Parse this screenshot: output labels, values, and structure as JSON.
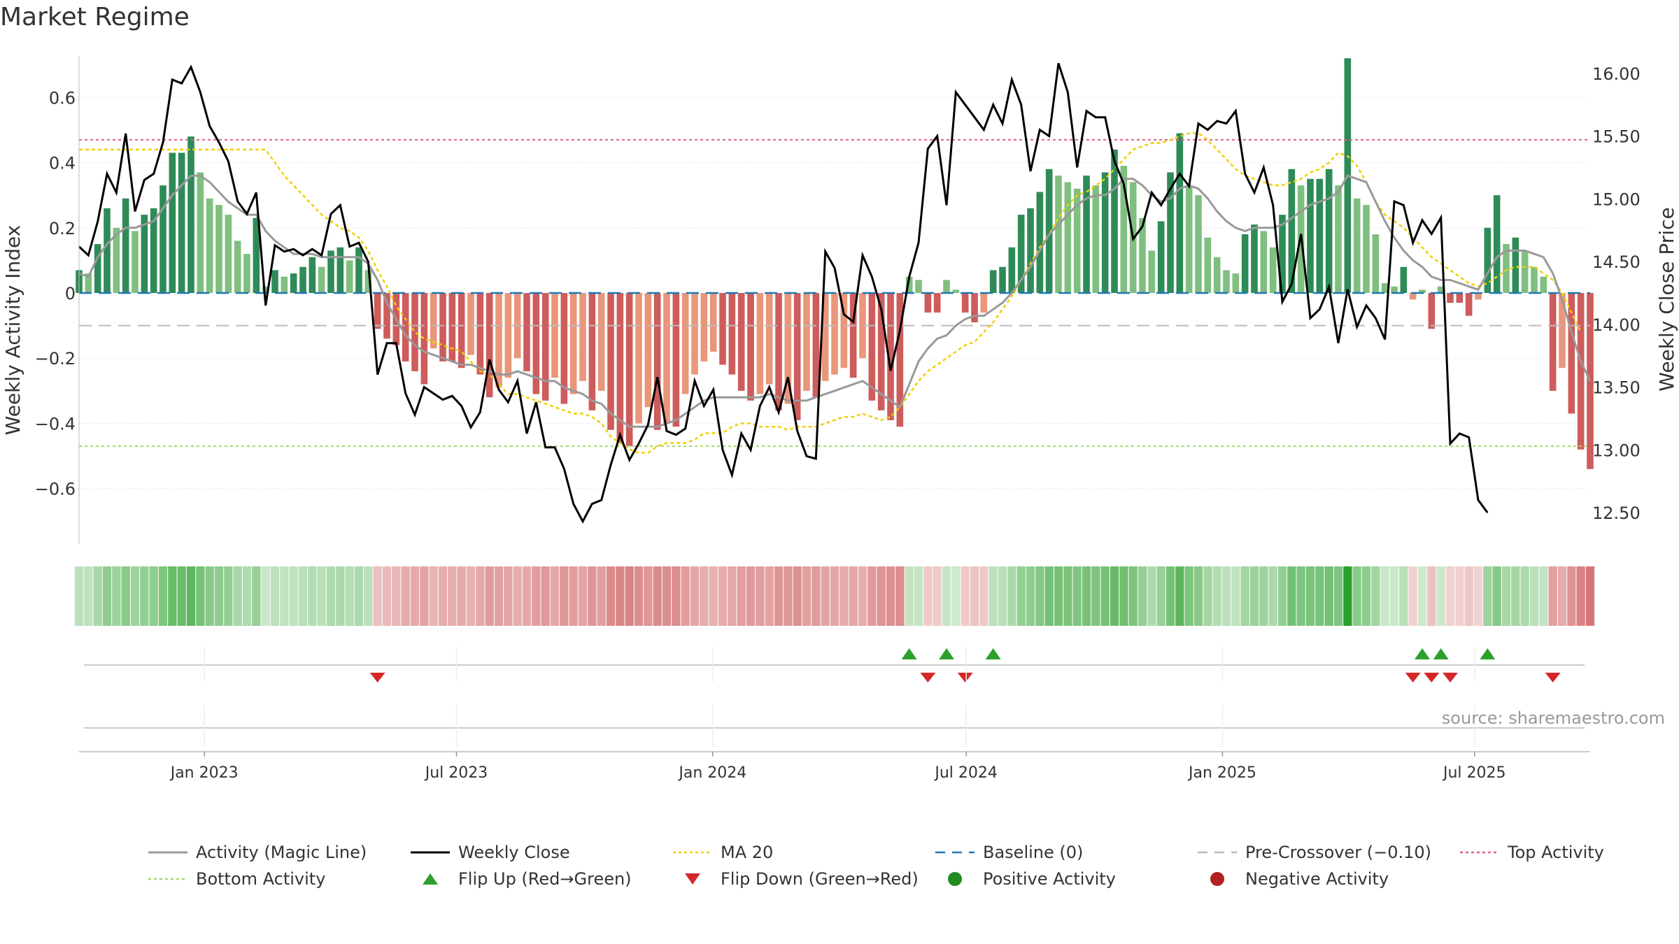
{
  "title": "Market Regime",
  "source": "source: sharemaestro.com",
  "colors": {
    "bar_green_dark": "#2e8b57",
    "bar_green_light": "#7fbf7f",
    "bar_red_dark": "#cd5c5c",
    "bar_red_light": "#e9967a",
    "magic_line": "#999999",
    "weekly_close": "#000000",
    "ma20": "#f0d000",
    "baseline": "#1f77b4",
    "pre_crossover": "#bbbbbb",
    "top_activity": "#e06080",
    "bottom_activity": "#a6d96a",
    "flip_up": "#2ca02c",
    "flip_down": "#d62728",
    "positive": "#228b22",
    "negative": "#b22222"
  },
  "legend": [
    {
      "label": "Activity (Magic Line)",
      "symbol": "line",
      "color": "#999999"
    },
    {
      "label": "Weekly Close",
      "symbol": "line",
      "color": "#000000"
    },
    {
      "label": "MA 20",
      "symbol": "dotted",
      "color": "#f0d000"
    },
    {
      "label": "Baseline (0)",
      "symbol": "dashed",
      "color": "#1f77b4"
    },
    {
      "label": "Pre-Crossover (−0.10)",
      "symbol": "dashed",
      "color": "#bbbbbb"
    },
    {
      "label": "Top Activity",
      "symbol": "dotted",
      "color": "#e06080"
    },
    {
      "label": "Bottom Activity",
      "symbol": "dotted",
      "color": "#a6d96a"
    },
    {
      "label": "Flip Up (Red→Green)",
      "symbol": "triangle-up",
      "color": "#2ca02c"
    },
    {
      "label": "Flip Down (Green→Red)",
      "symbol": "triangle-down",
      "color": "#d62728"
    },
    {
      "label": "Positive Activity",
      "symbol": "circle",
      "color": "#228b22"
    },
    {
      "label": "Negative Activity",
      "symbol": "circle",
      "color": "#b22222"
    }
  ],
  "chart_data": {
    "type": "bar",
    "title": "Market Regime",
    "ylabel": "Weekly Activity Index",
    "y2label": "Weekly Close Price",
    "ylim": [
      -0.77,
      0.77
    ],
    "y2lim": [
      12.25,
      16.25
    ],
    "yticks": [
      0.6,
      0.4,
      0.2,
      0,
      -0.2,
      -0.4,
      -0.6
    ],
    "yticklabels": [
      "0.6",
      "0.4",
      "0.2",
      "0",
      "−0.2",
      "−0.4",
      "−0.6"
    ],
    "y2ticks": [
      16.0,
      15.5,
      15.0,
      14.5,
      14.0,
      13.5,
      13.0,
      12.5
    ],
    "y2ticklabels": [
      "16.00",
      "15.50",
      "15.00",
      "14.50",
      "14.00",
      "13.50",
      "13.00",
      "12.50"
    ],
    "x_start": "2022-10-03",
    "x_end": "2025-09-22",
    "xticks": [
      {
        "date": "2023-01-01",
        "label": "Jan 2023"
      },
      {
        "date": "2023-07-01",
        "label": "Jul 2023"
      },
      {
        "date": "2024-01-01",
        "label": "Jan 2024"
      },
      {
        "date": "2024-07-01",
        "label": "Jul 2024"
      },
      {
        "date": "2025-01-01",
        "label": "Jan 2025"
      },
      {
        "date": "2025-07-01",
        "label": "Jul 2025"
      }
    ],
    "reference_lines": {
      "baseline": 0,
      "pre_crossover": -0.1,
      "top_activity": 0.47,
      "bottom_activity": -0.47
    },
    "activity": [
      0.07,
      0.06,
      0.15,
      0.26,
      0.2,
      0.29,
      0.19,
      0.24,
      0.26,
      0.33,
      0.43,
      0.43,
      0.48,
      0.37,
      0.29,
      0.27,
      0.24,
      0.16,
      0.12,
      0.23,
      0.02,
      0.07,
      0.05,
      0.06,
      0.08,
      0.11,
      0.08,
      0.13,
      0.14,
      0.1,
      0.14,
      0.07,
      -0.11,
      -0.14,
      -0.16,
      -0.21,
      -0.24,
      -0.28,
      -0.17,
      -0.21,
      -0.21,
      -0.23,
      -0.19,
      -0.25,
      -0.32,
      -0.29,
      -0.26,
      -0.2,
      -0.24,
      -0.31,
      -0.33,
      -0.26,
      -0.34,
      -0.31,
      -0.27,
      -0.36,
      -0.3,
      -0.42,
      -0.46,
      -0.47,
      -0.4,
      -0.35,
      -0.42,
      -0.4,
      -0.41,
      -0.31,
      -0.25,
      -0.21,
      -0.18,
      -0.22,
      -0.25,
      -0.3,
      -0.33,
      -0.31,
      -0.28,
      -0.36,
      -0.34,
      -0.39,
      -0.3,
      -0.32,
      -0.27,
      -0.25,
      -0.23,
      -0.26,
      -0.2,
      -0.33,
      -0.36,
      -0.39,
      -0.41,
      0.05,
      0.04,
      -0.06,
      -0.06,
      0.04,
      0.01,
      -0.06,
      -0.09,
      -0.06,
      0.07,
      0.08,
      0.14,
      0.24,
      0.26,
      0.31,
      0.38,
      0.36,
      0.34,
      0.32,
      0.36,
      0.33,
      0.37,
      0.44,
      0.39,
      0.34,
      0.23,
      0.13,
      0.22,
      0.37,
      0.49,
      0.33,
      0.3,
      0.17,
      0.11,
      0.07,
      0.06,
      0.18,
      0.21,
      0.19,
      0.14,
      0.24,
      0.38,
      0.33,
      0.35,
      0.35,
      0.38,
      0.33,
      0.72,
      0.29,
      0.27,
      0.18,
      0.03,
      0.02,
      0.08,
      -0.02,
      0.01,
      -0.11,
      0.02,
      -0.03,
      -0.03,
      -0.07,
      -0.02,
      0.2,
      0.3,
      0.15,
      0.17,
      0.13,
      0.08,
      0.05,
      -0.3,
      -0.23,
      -0.37,
      -0.48,
      -0.54
    ],
    "magic_line": [
      0.06,
      0.05,
      0.11,
      0.15,
      0.18,
      0.2,
      0.2,
      0.21,
      0.22,
      0.26,
      0.3,
      0.33,
      0.36,
      0.36,
      0.34,
      0.31,
      0.28,
      0.26,
      0.24,
      0.24,
      0.19,
      0.16,
      0.14,
      0.12,
      0.12,
      0.12,
      0.11,
      0.11,
      0.11,
      0.11,
      0.11,
      0.09,
      0.04,
      -0.03,
      -0.08,
      -0.13,
      -0.16,
      -0.18,
      -0.19,
      -0.2,
      -0.21,
      -0.22,
      -0.22,
      -0.23,
      -0.24,
      -0.25,
      -0.25,
      -0.24,
      -0.25,
      -0.26,
      -0.27,
      -0.27,
      -0.29,
      -0.3,
      -0.31,
      -0.33,
      -0.34,
      -0.37,
      -0.39,
      -0.41,
      -0.41,
      -0.41,
      -0.41,
      -0.4,
      -0.39,
      -0.37,
      -0.35,
      -0.33,
      -0.32,
      -0.32,
      -0.32,
      -0.32,
      -0.32,
      -0.32,
      -0.31,
      -0.32,
      -0.33,
      -0.33,
      -0.33,
      -0.32,
      -0.31,
      -0.3,
      -0.29,
      -0.28,
      -0.27,
      -0.29,
      -0.31,
      -0.33,
      -0.35,
      -0.28,
      -0.21,
      -0.17,
      -0.14,
      -0.13,
      -0.1,
      -0.08,
      -0.07,
      -0.07,
      -0.05,
      -0.03,
      0.0,
      0.04,
      0.08,
      0.13,
      0.18,
      0.21,
      0.24,
      0.27,
      0.29,
      0.3,
      0.3,
      0.32,
      0.35,
      0.35,
      0.33,
      0.3,
      0.28,
      0.29,
      0.32,
      0.33,
      0.32,
      0.29,
      0.25,
      0.22,
      0.2,
      0.19,
      0.2,
      0.2,
      0.2,
      0.21,
      0.23,
      0.25,
      0.27,
      0.28,
      0.29,
      0.31,
      0.36,
      0.35,
      0.34,
      0.28,
      0.22,
      0.17,
      0.13,
      0.1,
      0.08,
      0.05,
      0.04,
      0.04,
      0.03,
      0.02,
      0.01,
      0.06,
      0.11,
      0.13,
      0.13,
      0.13,
      0.12,
      0.11,
      0.06,
      -0.02,
      -0.12,
      -0.21,
      -0.27
    ],
    "ma20": [
      0.44,
      0.44,
      0.44,
      0.44,
      0.44,
      0.44,
      0.44,
      0.44,
      0.44,
      0.44,
      0.44,
      0.44,
      0.44,
      0.44,
      0.44,
      0.44,
      0.44,
      0.44,
      0.44,
      0.44,
      0.44,
      0.4,
      0.36,
      0.33,
      0.3,
      0.27,
      0.24,
      0.22,
      0.2,
      0.19,
      0.17,
      0.13,
      0.07,
      0.02,
      -0.04,
      -0.08,
      -0.12,
      -0.14,
      -0.15,
      -0.16,
      -0.17,
      -0.18,
      -0.21,
      -0.24,
      -0.25,
      -0.28,
      -0.31,
      -0.31,
      -0.32,
      -0.33,
      -0.34,
      -0.35,
      -0.36,
      -0.37,
      -0.37,
      -0.38,
      -0.4,
      -0.44,
      -0.46,
      -0.48,
      -0.49,
      -0.49,
      -0.47,
      -0.46,
      -0.46,
      -0.46,
      -0.45,
      -0.43,
      -0.43,
      -0.43,
      -0.41,
      -0.4,
      -0.4,
      -0.41,
      -0.41,
      -0.41,
      -0.42,
      -0.41,
      -0.41,
      -0.41,
      -0.4,
      -0.39,
      -0.38,
      -0.38,
      -0.37,
      -0.38,
      -0.39,
      -0.38,
      -0.35,
      -0.31,
      -0.27,
      -0.24,
      -0.22,
      -0.2,
      -0.18,
      -0.16,
      -0.15,
      -0.12,
      -0.09,
      -0.05,
      -0.01,
      0.04,
      0.09,
      0.14,
      0.18,
      0.23,
      0.27,
      0.3,
      0.31,
      0.33,
      0.35,
      0.38,
      0.41,
      0.44,
      0.45,
      0.46,
      0.46,
      0.47,
      0.48,
      0.49,
      0.49,
      0.47,
      0.44,
      0.41,
      0.38,
      0.36,
      0.35,
      0.34,
      0.33,
      0.33,
      0.34,
      0.35,
      0.37,
      0.38,
      0.4,
      0.43,
      0.42,
      0.39,
      0.34,
      0.28,
      0.24,
      0.22,
      0.2,
      0.17,
      0.14,
      0.11,
      0.09,
      0.07,
      0.05,
      0.03,
      0.02,
      0.03,
      0.05,
      0.07,
      0.08,
      0.08,
      0.08,
      0.06,
      0.04,
      0.0,
      -0.06,
      -0.12
    ],
    "weekly_close": [
      14.62,
      14.55,
      14.82,
      15.2,
      15.05,
      15.52,
      14.9,
      15.15,
      15.2,
      15.45,
      15.95,
      15.92,
      16.05,
      15.85,
      15.58,
      15.45,
      15.3,
      14.98,
      14.88,
      15.05,
      14.15,
      14.63,
      14.58,
      14.6,
      14.55,
      14.6,
      14.55,
      14.88,
      14.95,
      14.62,
      14.65,
      14.5,
      13.6,
      13.85,
      13.85,
      13.45,
      13.28,
      13.5,
      13.45,
      13.4,
      13.43,
      13.35,
      13.18,
      13.3,
      13.72,
      13.48,
      13.38,
      13.55,
      13.13,
      13.38,
      13.02,
      13.02,
      12.85,
      12.57,
      12.43,
      12.57,
      12.6,
      12.88,
      13.12,
      12.92,
      13.05,
      13.2,
      13.58,
      13.15,
      13.12,
      13.17,
      13.55,
      13.35,
      13.48,
      13.0,
      12.8,
      13.13,
      13.0,
      13.35,
      13.5,
      13.3,
      13.58,
      13.15,
      12.95,
      12.93,
      14.58,
      14.45,
      14.08,
      14.02,
      14.55,
      14.38,
      14.12,
      13.63,
      13.95,
      14.38,
      14.65,
      15.4,
      15.5,
      14.95,
      15.85,
      15.75,
      15.65,
      15.55,
      15.75,
      15.6,
      15.95,
      15.75,
      15.22,
      15.55,
      15.5,
      16.08,
      15.85,
      15.25,
      15.7,
      15.65,
      15.65,
      15.3,
      15.12,
      14.68,
      14.78,
      15.05,
      14.95,
      15.08,
      15.2,
      15.1,
      15.6,
      15.55,
      15.62,
      15.6,
      15.7,
      15.2,
      15.05,
      15.25,
      14.95,
      14.18,
      14.32,
      14.72,
      14.05,
      14.12,
      14.3,
      13.85,
      14.28,
      13.98,
      14.15,
      14.05,
      13.88,
      14.98,
      14.95,
      14.65,
      14.83,
      14.72,
      14.85,
      13.05,
      13.13,
      13.1,
      12.6,
      12.5
    ]
  }
}
